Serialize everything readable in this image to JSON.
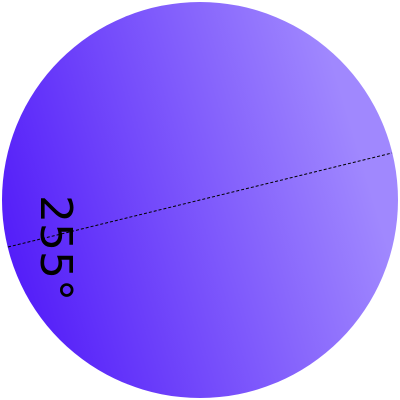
{
  "angle_label": "255°",
  "colors": {
    "gradient_start": "#4a10f8",
    "gradient_end": "#a088fe",
    "indicator_line": "#000000",
    "label_text": "#000000"
  }
}
